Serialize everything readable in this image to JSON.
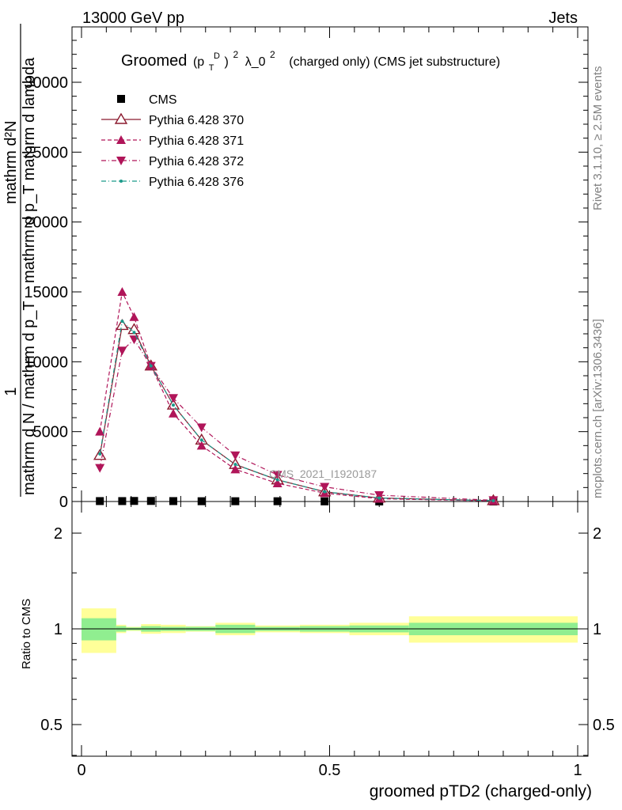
{
  "header": {
    "left": "13000 GeV pp",
    "right": "Jets"
  },
  "side_labels": {
    "rivet": "Rivet 3.1.10, ≥ 2.5M events",
    "mcplots": "mcplots.cern.ch [arXiv:1306.3436]"
  },
  "watermark": "CMS_2021_I1920187",
  "title": {
    "prefix": "Groomed",
    "p": "(p",
    "sub": "T",
    "sup": "D",
    "after": ")",
    "sup2": "2",
    "lambda": "λ_0",
    "sup3": "2",
    "suffix": "(charged only) (CMS jet substructure)"
  },
  "ylabel_main": {
    "num": "mathrm d²N",
    "den_upper": "mathrm d p_T mathrm d lambda",
    "one": "1",
    "den_lower": "mathrm d N / mathrm d p_T"
  },
  "ylabel_ratio": "Ratio to CMS",
  "xlabel": "groomed pTD2 (charged-only)",
  "colors": {
    "cms": "#000000",
    "p370": "#8b1a2e",
    "p371": "#b01559",
    "p372": "#b01559",
    "p376": "#1a9a8a",
    "band_inner": "#90ee90",
    "band_outer": "#ffff99"
  },
  "chart_data": [
    {
      "type": "scatter",
      "xlim": [
        -0.02,
        1.02
      ],
      "ylim": [
        0,
        34000
      ],
      "yticks": [
        0,
        5000,
        10000,
        15000,
        20000,
        25000,
        30000
      ],
      "yticklabels": [
        "0",
        "5000",
        "10000",
        "15000",
        "20000",
        "25000",
        "30000"
      ],
      "series": [
        {
          "name": "CMS",
          "marker": "square",
          "x": [
            0.037,
            0.082,
            0.106,
            0.14,
            0.185,
            0.242,
            0.31,
            0.395,
            0.49,
            0.6,
            0.83
          ],
          "y": [
            30,
            30,
            40,
            40,
            30,
            20,
            20,
            20,
            10,
            5,
            2
          ]
        },
        {
          "name": "Pythia 6.428 370",
          "marker": "triangle-open",
          "line": "solid",
          "x": [
            0.037,
            0.082,
            0.106,
            0.14,
            0.185,
            0.242,
            0.31,
            0.395,
            0.49,
            0.6,
            0.83
          ],
          "y": [
            3300,
            12600,
            12300,
            9700,
            6900,
            4400,
            2650,
            1550,
            700,
            250,
            60
          ]
        },
        {
          "name": "Pythia 6.428 371",
          "marker": "triangle-up",
          "line": "dashed",
          "x": [
            0.037,
            0.082,
            0.106,
            0.14,
            0.185,
            0.242,
            0.31,
            0.395,
            0.49,
            0.6,
            0.83
          ],
          "y": [
            5000,
            15000,
            13200,
            9700,
            6300,
            4000,
            2300,
            1300,
            600,
            200,
            40
          ]
        },
        {
          "name": "Pythia 6.428 372",
          "marker": "triangle-down",
          "line": "dashdot",
          "x": [
            0.037,
            0.082,
            0.106,
            0.14,
            0.185,
            0.242,
            0.31,
            0.395,
            0.49,
            0.6,
            0.83
          ],
          "y": [
            2400,
            10800,
            11600,
            9700,
            7400,
            5300,
            3300,
            1900,
            1050,
            450,
            90
          ]
        },
        {
          "name": "Pythia 6.428 376",
          "marker": "dot",
          "line": "dashdot",
          "x": [
            0.037,
            0.082,
            0.106,
            0.14,
            0.185,
            0.242,
            0.31,
            0.395,
            0.49,
            0.6,
            0.83
          ],
          "y": [
            3400,
            12900,
            12100,
            9700,
            6900,
            4400,
            2650,
            1550,
            700,
            250,
            60
          ]
        }
      ]
    },
    {
      "type": "area",
      "ylabel": "Ratio to CMS",
      "ylim": [
        0.35,
        2.4
      ],
      "yticks": [
        0.5,
        1,
        2
      ],
      "yticklabels": [
        "0.5",
        "1",
        "2"
      ],
      "xticks": [
        0,
        0.5,
        1
      ],
      "xticklabels": [
        "0",
        "0.5",
        "1"
      ],
      "bands": [
        {
          "x0": 0.0,
          "x1": 0.07,
          "inner": [
            0.92,
            1.08
          ],
          "outer": [
            0.84,
            1.16
          ]
        },
        {
          "x0": 0.07,
          "x1": 0.09,
          "inner": [
            0.98,
            1.02
          ],
          "outer": [
            0.97,
            1.03
          ]
        },
        {
          "x0": 0.09,
          "x1": 0.12,
          "inner": [
            0.99,
            1.01
          ],
          "outer": [
            0.985,
            1.015
          ]
        },
        {
          "x0": 0.12,
          "x1": 0.16,
          "inner": [
            0.98,
            1.02
          ],
          "outer": [
            0.965,
            1.035
          ]
        },
        {
          "x0": 0.16,
          "x1": 0.21,
          "inner": [
            0.985,
            1.015
          ],
          "outer": [
            0.97,
            1.03
          ]
        },
        {
          "x0": 0.21,
          "x1": 0.27,
          "inner": [
            0.985,
            1.015
          ],
          "outer": [
            0.98,
            1.02
          ]
        },
        {
          "x0": 0.27,
          "x1": 0.35,
          "inner": [
            0.97,
            1.03
          ],
          "outer": [
            0.955,
            1.045
          ]
        },
        {
          "x0": 0.35,
          "x1": 0.44,
          "inner": [
            0.985,
            1.015
          ],
          "outer": [
            0.975,
            1.025
          ]
        },
        {
          "x0": 0.44,
          "x1": 0.54,
          "inner": [
            0.98,
            1.02
          ],
          "outer": [
            0.97,
            1.03
          ]
        },
        {
          "x0": 0.54,
          "x1": 0.66,
          "inner": [
            0.975,
            1.025
          ],
          "outer": [
            0.955,
            1.045
          ]
        },
        {
          "x0": 0.66,
          "x1": 1.0,
          "inner": [
            0.955,
            1.045
          ],
          "outer": [
            0.905,
            1.095
          ]
        }
      ]
    }
  ]
}
